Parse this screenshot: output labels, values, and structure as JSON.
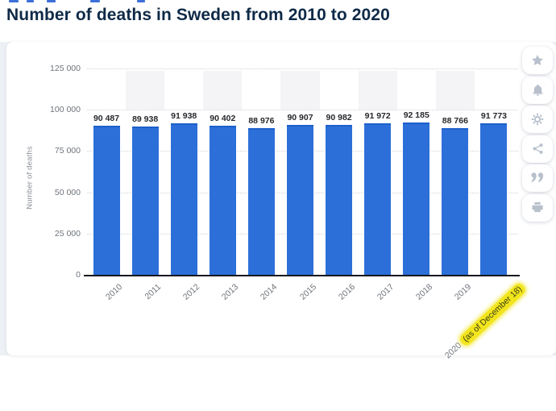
{
  "header": {
    "title": "Number of deaths in Sweden from 2010 to 2020"
  },
  "chart_data": {
    "type": "bar",
    "title": "Number of deaths in Sweden from 2010 to 2020",
    "xlabel": "",
    "ylabel": "Number of deaths",
    "categories": [
      "2010",
      "2011",
      "2012",
      "2013",
      "2014",
      "2015",
      "2016",
      "2017",
      "2018",
      "2019",
      "2020 (as of December 18)"
    ],
    "values": [
      90487,
      89938,
      91938,
      90402,
      88976,
      90907,
      90982,
      91972,
      92185,
      88766,
      91773
    ],
    "value_labels": [
      "90 487",
      "89 938",
      "91 938",
      "90 402",
      "88 976",
      "90 907",
      "90 982",
      "91 972",
      "92 185",
      "88 766",
      "91 773"
    ],
    "yticks": [
      0,
      25000,
      50000,
      75000,
      100000,
      125000
    ],
    "ytick_labels": [
      "0",
      "25 000",
      "50 000",
      "75 000",
      "100 000",
      "125 000"
    ],
    "ylim": [
      0,
      125000
    ],
    "grid": "dotted-horizontal",
    "legend": "none",
    "striped_columns": [
      1,
      3,
      5,
      7,
      9
    ],
    "bar_color": "#2c6fd8",
    "highlight": {
      "category": "2020 (as of December 18)",
      "highlighted_text": "(as of December 18)",
      "color": "#f2e51d"
    }
  },
  "toolbar": {
    "buttons": [
      {
        "name": "favorite",
        "icon": "star-icon"
      },
      {
        "name": "notifications",
        "icon": "bell-icon"
      },
      {
        "name": "settings",
        "icon": "gear-icon"
      },
      {
        "name": "share",
        "icon": "share-icon"
      },
      {
        "name": "cite",
        "icon": "quote-icon"
      },
      {
        "name": "print",
        "icon": "print-icon"
      }
    ]
  },
  "colors": {
    "accent_bar": "#2c6fd8",
    "title_text": "#0f2a48",
    "highlight_yellow": "#f2e51d",
    "icon_gray": "#b7c0cb",
    "page_background": "#edf0f5"
  }
}
